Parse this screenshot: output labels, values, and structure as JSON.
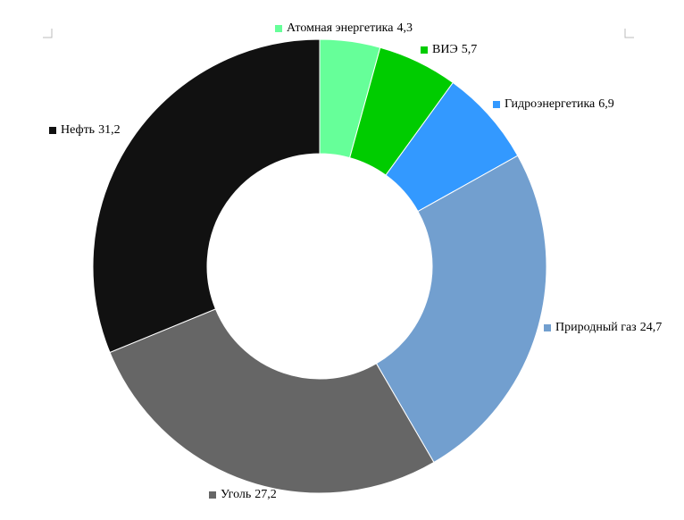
{
  "chart_data": {
    "type": "donut",
    "categories": [
      "Атомная энергетика",
      "ВИЭ",
      "Гидроэнергетика",
      "Природный газ",
      "Уголь",
      "Нефть"
    ],
    "values": [
      4.3,
      5.7,
      6.9,
      24.7,
      27.2,
      31.2
    ],
    "value_labels": [
      "4,3",
      "5,7",
      "6,9",
      "24,7",
      "27,2",
      "31,2"
    ],
    "colors": [
      "#66ff99",
      "#00cc00",
      "#3399ff",
      "#729fcf",
      "#666666",
      "#111111"
    ]
  }
}
